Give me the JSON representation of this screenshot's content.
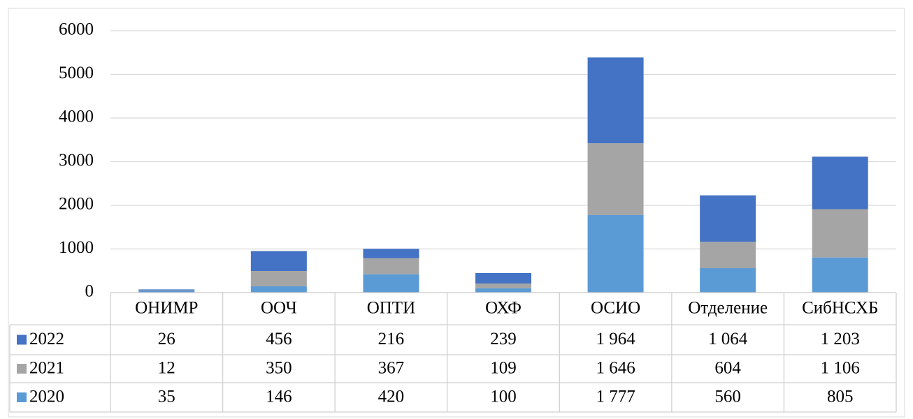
{
  "chart_data": {
    "type": "stacked_bar",
    "categories": [
      "ОНИМР",
      "ООЧ",
      "ОПТИ",
      "ОХФ",
      "ОСИО",
      "Отделение",
      "СибНСХБ"
    ],
    "series": [
      {
        "name": "2022",
        "color": "#4472c4",
        "values": [
          26,
          456,
          216,
          239,
          1964,
          1064,
          1203
        ],
        "value_labels": [
          "26",
          "456",
          "216",
          "239",
          "1 964",
          "1 064",
          "1 203"
        ]
      },
      {
        "name": "2021",
        "color": "#a5a5a5",
        "values": [
          12,
          350,
          367,
          109,
          1646,
          604,
          1106
        ],
        "value_labels": [
          "12",
          "350",
          "367",
          "109",
          "1 646",
          "604",
          "1 106"
        ]
      },
      {
        "name": "2020",
        "color": "#5b9bd5",
        "values": [
          35,
          146,
          420,
          100,
          1777,
          560,
          805
        ],
        "value_labels": [
          "35",
          "146",
          "420",
          "100",
          "1 777",
          "560",
          "805"
        ]
      }
    ],
    "ylim": [
      0,
      6000
    ],
    "yticks": [
      0,
      1000,
      2000,
      3000,
      4000,
      5000,
      6000
    ],
    "grid": true
  }
}
